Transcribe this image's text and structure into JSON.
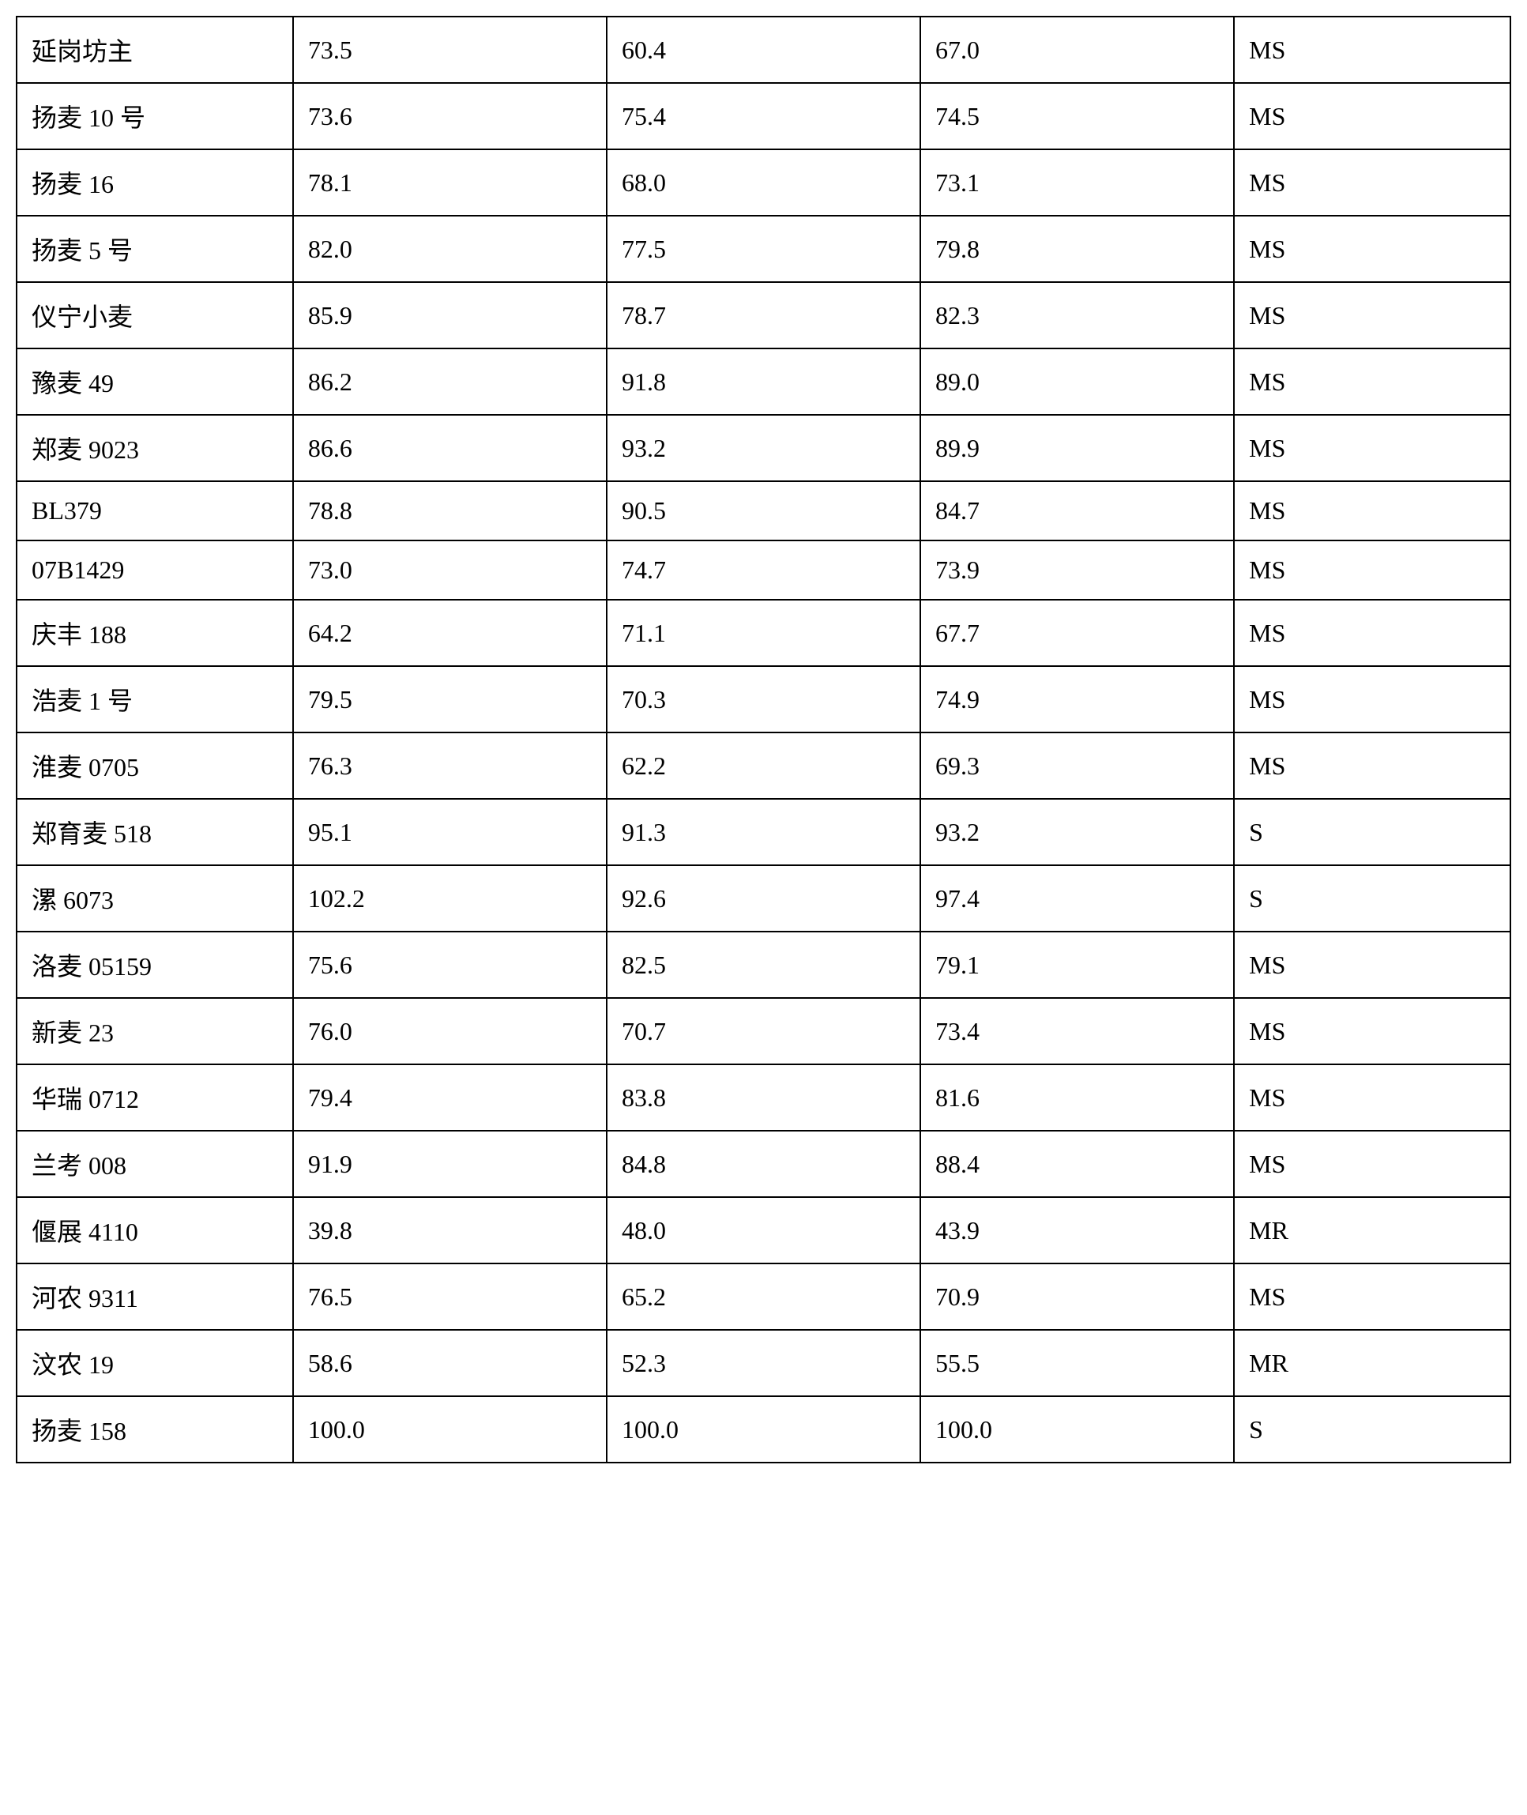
{
  "table": {
    "background_color": "#ffffff",
    "border_color": "#000000",
    "border_width": 2,
    "text_color": "#000000",
    "font_size": 32,
    "font_family": "SimSun",
    "column_widths": [
      "18.5%",
      "21%",
      "21%",
      "21%",
      "18.5%"
    ],
    "cell_padding": 18,
    "rows": [
      {
        "name": "延岗坊主",
        "val1": "73.5",
        "val2": "60.4",
        "val3": "67.0",
        "rating": "MS"
      },
      {
        "name": "扬麦 10 号",
        "val1": "73.6",
        "val2": "75.4",
        "val3": "74.5",
        "rating": "MS"
      },
      {
        "name": "扬麦 16",
        "val1": "78.1",
        "val2": "68.0",
        "val3": "73.1",
        "rating": "MS"
      },
      {
        "name": "扬麦 5 号",
        "val1": "82.0",
        "val2": "77.5",
        "val3": "79.8",
        "rating": "MS"
      },
      {
        "name": "仪宁小麦",
        "val1": "85.9",
        "val2": "78.7",
        "val3": "82.3",
        "rating": "MS"
      },
      {
        "name": "豫麦 49",
        "val1": "86.2",
        "val2": "91.8",
        "val3": "89.0",
        "rating": "MS"
      },
      {
        "name": "郑麦 9023",
        "val1": "86.6",
        "val2": "93.2",
        "val3": "89.9",
        "rating": "MS"
      },
      {
        "name": "BL379",
        "val1": "78.8",
        "val2": "90.5",
        "val3": "84.7",
        "rating": "MS"
      },
      {
        "name": "07B1429",
        "val1": "73.0",
        "val2": "74.7",
        "val3": "73.9",
        "rating": "MS"
      },
      {
        "name": "庆丰 188",
        "val1": "64.2",
        "val2": "71.1",
        "val3": "67.7",
        "rating": "MS"
      },
      {
        "name": "浩麦 1 号",
        "val1": "79.5",
        "val2": "70.3",
        "val3": "74.9",
        "rating": "MS"
      },
      {
        "name": "淮麦 0705",
        "val1": "76.3",
        "val2": "62.2",
        "val3": "69.3",
        "rating": "MS"
      },
      {
        "name": "郑育麦 518",
        "val1": "95.1",
        "val2": "91.3",
        "val3": "93.2",
        "rating": "S"
      },
      {
        "name": "漯 6073",
        "val1": "102.2",
        "val2": "92.6",
        "val3": "97.4",
        "rating": "S"
      },
      {
        "name": "洛麦 05159",
        "val1": "75.6",
        "val2": "82.5",
        "val3": "79.1",
        "rating": "MS"
      },
      {
        "name": "新麦 23",
        "val1": "76.0",
        "val2": "70.7",
        "val3": "73.4",
        "rating": "MS"
      },
      {
        "name": "华瑞 0712",
        "val1": "79.4",
        "val2": "83.8",
        "val3": "81.6",
        "rating": "MS"
      },
      {
        "name": "兰考 008",
        "val1": "91.9",
        "val2": "84.8",
        "val3": "88.4",
        "rating": "MS"
      },
      {
        "name": "偃展 4110",
        "val1": "39.8",
        "val2": "48.0",
        "val3": "43.9",
        "rating": "MR"
      },
      {
        "name": "河农 9311",
        "val1": "76.5",
        "val2": "65.2",
        "val3": "70.9",
        "rating": "MS"
      },
      {
        "name": "汶农 19",
        "val1": "58.6",
        "val2": "52.3",
        "val3": "55.5",
        "rating": "MR"
      },
      {
        "name": "扬麦 158",
        "val1": "100.0",
        "val2": "100.0",
        "val3": "100.0",
        "rating": "S"
      }
    ]
  }
}
